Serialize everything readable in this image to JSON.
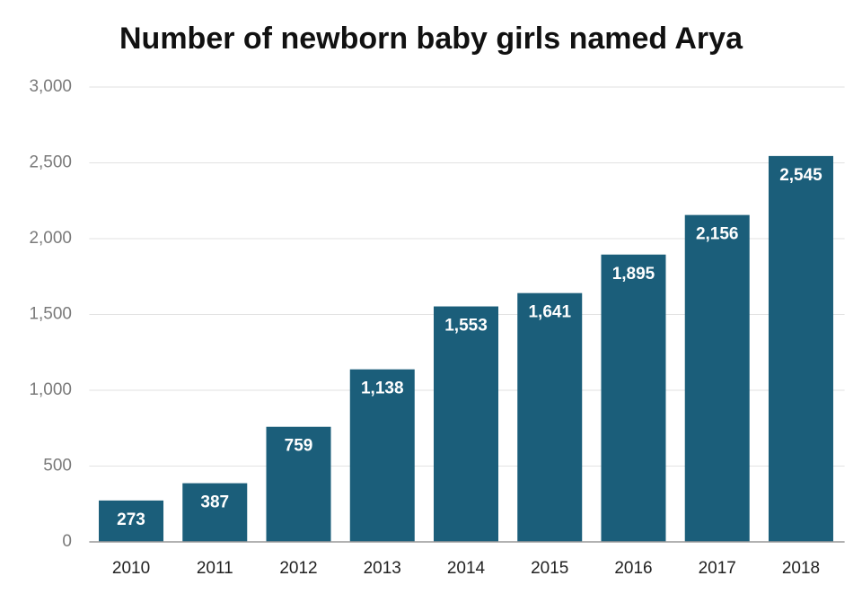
{
  "chart_data": {
    "type": "bar",
    "title": "Number of newborn baby girls named Arya",
    "categories": [
      "2010",
      "2011",
      "2012",
      "2013",
      "2014",
      "2015",
      "2016",
      "2017",
      "2018"
    ],
    "values": [
      273,
      387,
      759,
      1138,
      1553,
      1641,
      1895,
      2156,
      2545
    ],
    "value_labels": [
      "273",
      "387",
      "759",
      "1,138",
      "1,553",
      "1,641",
      "1,895",
      "2,156",
      "2,545"
    ],
    "color": "#1b5e7a",
    "ylim": [
      0,
      3000
    ],
    "yticks": [
      0,
      500,
      {
        "value": 1000,
        "label": "1,000"
      },
      {
        "value": 1500,
        "label": "1,500"
      },
      {
        "value": 2000,
        "label": "2,000"
      },
      {
        "value": 2500,
        "label": "2,500"
      },
      {
        "value": 3000,
        "label": "3,000"
      }
    ],
    "grid": true
  }
}
